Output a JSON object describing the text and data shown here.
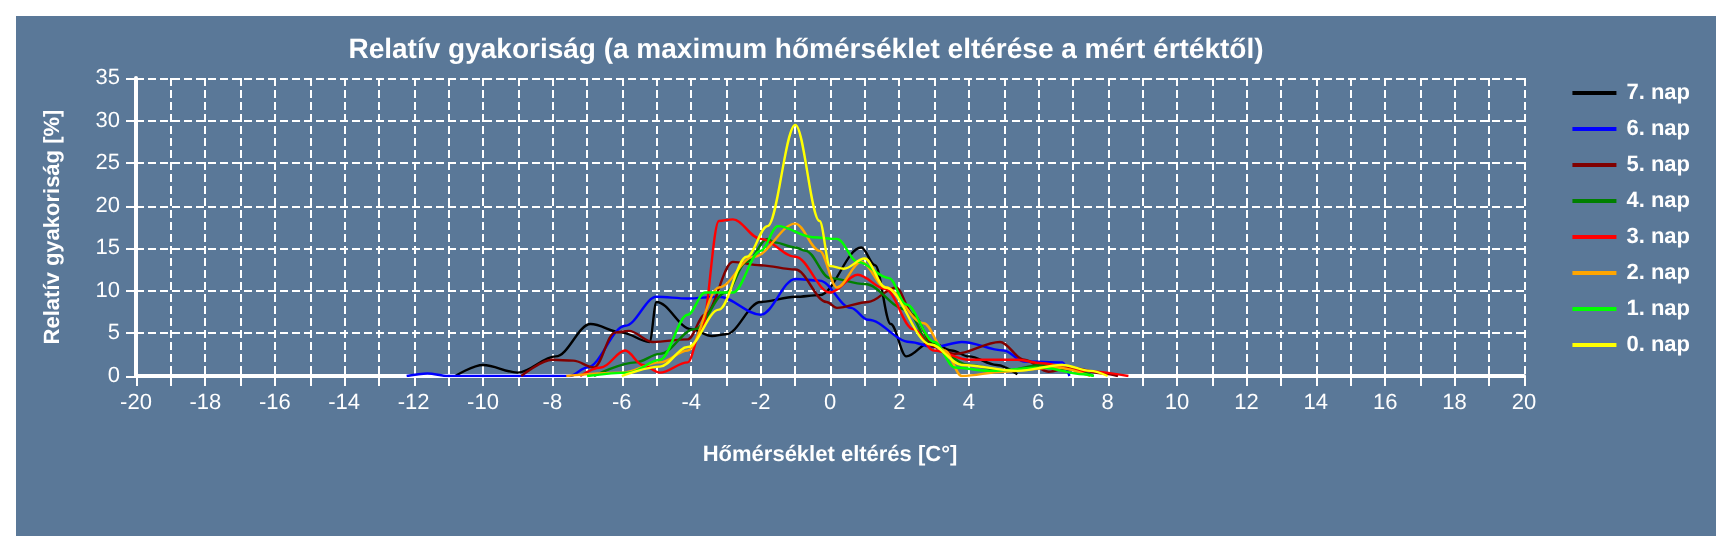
{
  "chart_data": {
    "type": "line",
    "title": "Relatív gyakoriság (a maximum hőmérséklet eltérése a mért értéktől)",
    "xlabel": "Hőmérséklet eltérés [C°]",
    "ylabel": "Relatív gyakoriság [%]",
    "xlim": [
      -20,
      20
    ],
    "ylim": [
      0,
      35
    ],
    "xticks": [
      -20,
      {
        "value": -19,
        "label": null
      },
      -18,
      {
        "value": -17,
        "label": null
      },
      -16,
      {
        "value": -15,
        "label": null
      },
      -14,
      {
        "value": -13,
        "label": null
      },
      -12,
      {
        "value": -11,
        "label": null
      },
      -10,
      {
        "value": -9,
        "label": null
      },
      -8,
      {
        "value": -7,
        "label": null
      },
      -6,
      {
        "value": -5,
        "label": null
      },
      -4,
      {
        "value": -3,
        "label": null
      },
      -2,
      {
        "value": -1,
        "label": null
      },
      0,
      {
        "value": 1,
        "label": null
      },
      2,
      {
        "value": 3,
        "label": null
      },
      4,
      {
        "value": 5,
        "label": null
      },
      6,
      {
        "value": 7,
        "label": null
      },
      8,
      {
        "value": 9,
        "label": null
      },
      10,
      {
        "value": 11,
        "label": null
      },
      12,
      {
        "value": 13,
        "label": null
      },
      14,
      {
        "value": 15,
        "label": null
      },
      16,
      {
        "value": 17,
        "label": null
      },
      18,
      {
        "value": 19,
        "label": null
      },
      20
    ],
    "yticks": [
      0,
      5,
      10,
      15,
      20,
      25,
      30,
      35
    ],
    "grid": true,
    "legend": "right",
    "marker": "none",
    "line_style": "solid",
    "series": [
      {
        "name": "7. nap",
        "color": "#000000",
        "x": [
          -10.8,
          -10,
          -9,
          -7.9,
          -6.9,
          -6,
          -5.2,
          -5,
          -4,
          -3.4,
          -3,
          -2,
          -1,
          -0.3,
          0.9,
          1.3,
          1.75,
          2.2,
          2.9,
          3.5,
          4,
          4.8,
          5.4
        ],
        "values": [
          0,
          1.3,
          0.4,
          2.3,
          6.1,
          5.1,
          4,
          8.7,
          5.5,
          4.7,
          4.9,
          8.7,
          9.3,
          9.5,
          15.1,
          13,
          6.1,
          2.3,
          4,
          3,
          2.3,
          1.3,
          0.2
        ]
      },
      {
        "name": "6. nap",
        "color": "#0000ff",
        "x": [
          -12.2,
          -11.6,
          -11,
          -7.5,
          -7,
          -5.9,
          -5,
          -4.1,
          -3.2,
          -2,
          -1,
          -0.3,
          0.6,
          1.1,
          2.3,
          3,
          3.8,
          5,
          5.6,
          6.7,
          6.9
        ],
        "values": [
          0,
          0.3,
          0,
          0,
          1,
          5.9,
          9.3,
          9.1,
          9.3,
          7.2,
          11.4,
          11.2,
          8,
          6.6,
          4,
          3.4,
          4,
          3,
          1.7,
          1.6,
          0
        ]
      },
      {
        "name": "5. nap",
        "color": "#800000",
        "x": [
          -8.9,
          -8,
          -7.4,
          -6.8,
          -6.2,
          -5.8,
          -5.1,
          -4.1,
          -3.6,
          -2.8,
          -2,
          -1,
          -0.1,
          0.2,
          1.1,
          1.9,
          2.4,
          3,
          3.6,
          4.9,
          5.6,
          6.3,
          6.9,
          7.9,
          8.3
        ],
        "values": [
          0,
          1.9,
          1.8,
          1,
          5.1,
          5.3,
          4,
          4.3,
          7.2,
          13.4,
          13,
          12.5,
          8.7,
          8,
          8.7,
          10.4,
          7.2,
          3.4,
          2.6,
          4,
          1.9,
          0.5,
          1,
          0.3,
          0
        ]
      },
      {
        "name": "4. nap",
        "color": "#008000",
        "x": [
          -6.8,
          -5.6,
          -4.9,
          -3.9,
          -3,
          -2.4,
          -1.8,
          -1.6,
          -1,
          -0.7,
          0,
          1,
          2.2,
          2.9,
          4,
          5,
          6.1,
          6.9,
          7.6
        ],
        "values": [
          0,
          1.6,
          2.6,
          5.5,
          9.8,
          13.4,
          16.1,
          15.7,
          15.1,
          14.7,
          11.5,
          10.8,
          7.8,
          3.7,
          1.3,
          0.6,
          1.3,
          0.8,
          0
        ]
      },
      {
        "name": "3. nap",
        "color": "#ff0000",
        "x": [
          -7.2,
          -6.6,
          -5.9,
          -5.4,
          -4.9,
          -4.1,
          -3.7,
          -3.2,
          -2.8,
          -2,
          -1,
          0,
          0.8,
          1.6,
          2.4,
          3,
          4,
          5.4,
          6.1,
          7.3,
          8.6
        ],
        "values": [
          0,
          1,
          3,
          1.3,
          0.4,
          1.6,
          5.5,
          18.2,
          18.4,
          16.1,
          14,
          9.8,
          11.9,
          10.2,
          5.5,
          3,
          1.9,
          1.9,
          1.5,
          0.6,
          0
        ]
      },
      {
        "name": "2. nap",
        "color": "#ffa500",
        "x": [
          -7.6,
          -6,
          -4.9,
          -4.1,
          -3.2,
          -2.2,
          -1,
          -0.3,
          0.2,
          0.9,
          1.6,
          2.7,
          3.3,
          3.8,
          5,
          6.5,
          7.5
        ],
        "values": [
          0,
          0.4,
          1.6,
          3,
          10.4,
          14,
          17.9,
          14.7,
          10.4,
          13.4,
          10.4,
          6.2,
          3,
          0,
          0.5,
          1,
          0
        ]
      },
      {
        "name": "1. nap",
        "color": "#00ff00",
        "x": [
          -7,
          -5.8,
          -4.9,
          -4.1,
          -3.6,
          -2.8,
          -2,
          -1.5,
          -0.5,
          0.2,
          0.8,
          1.7,
          2.2,
          3,
          3.6,
          4.6,
          6.1,
          7.3,
          7.6
        ],
        "values": [
          0,
          0.4,
          1.9,
          7.2,
          9.8,
          9.8,
          14.7,
          17.6,
          16.3,
          16.1,
          13.4,
          11.5,
          8.4,
          4,
          1,
          0.6,
          1,
          0.2,
          0
        ]
      },
      {
        "name": "0. nap",
        "color": "#ffff00",
        "x": [
          -6,
          -4.9,
          -4.1,
          -3.2,
          -2.4,
          -1.8,
          -1,
          -0.3,
          0,
          0.4,
          1,
          1.6,
          2.9,
          3.8,
          5.4,
          6.7,
          7.5,
          8
        ],
        "values": [
          0,
          1.1,
          3.4,
          7.8,
          14,
          17.6,
          29.5,
          18.2,
          12.9,
          12.6,
          13.8,
          10.4,
          3.7,
          1.3,
          0.6,
          1.3,
          0.6,
          0
        ]
      }
    ]
  }
}
